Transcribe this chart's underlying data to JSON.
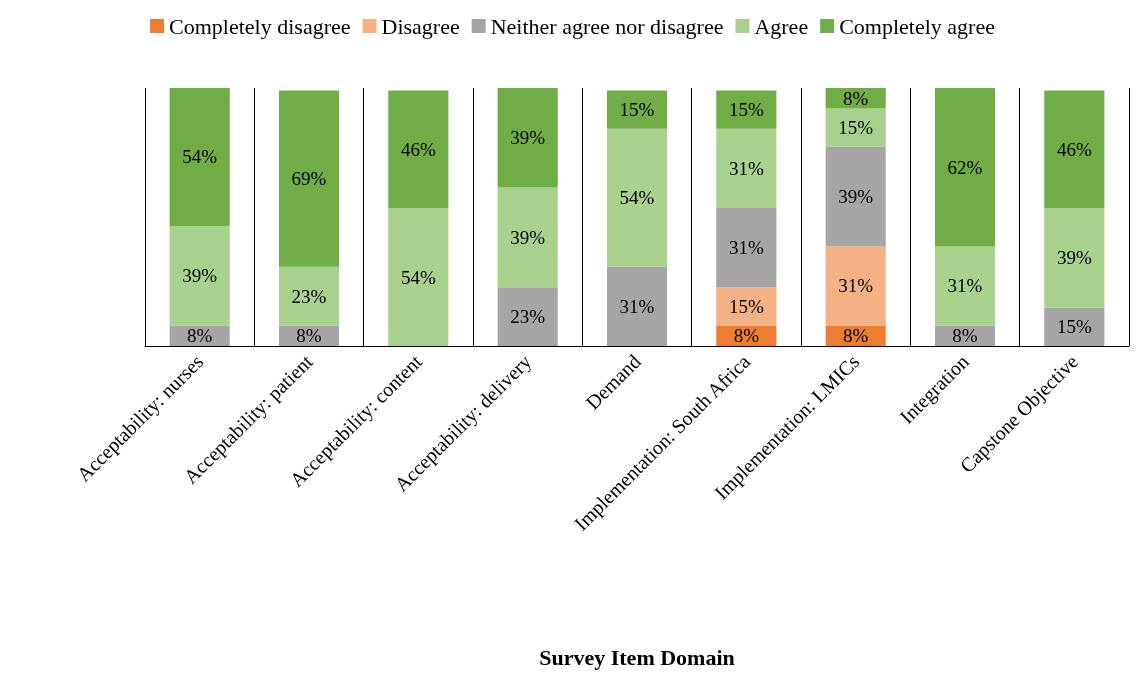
{
  "chart_data": {
    "type": "bar",
    "stacked": true,
    "tick_labels": "x",
    "grid": "x",
    "legend": "top",
    "xlabel": "Survey Item Domain",
    "categories": [
      "Acceptability: nurses",
      "Acceptability: patient",
      "Acceptability: content",
      "Acceptability: delivery",
      "Demand",
      "Implementation: South Africa",
      "Implementation: LMICs",
      "Integration",
      "Capstone Objective"
    ],
    "series": [
      {
        "name": "Completely disagree",
        "color": "#ed7d31",
        "values": [
          null,
          null,
          null,
          null,
          null,
          8,
          8,
          null,
          null
        ],
        "value_labels": [
          null,
          null,
          null,
          null,
          null,
          "8%",
          "8%",
          null,
          null
        ]
      },
      {
        "name": "Disagree",
        "color": "#f4b183",
        "values": [
          null,
          null,
          null,
          null,
          null,
          15,
          31,
          null,
          null
        ],
        "value_labels": [
          null,
          null,
          null,
          null,
          null,
          "15%",
          "31%",
          null,
          null
        ]
      },
      {
        "name": "Neither agree nor disagree",
        "color": "#a5a5a5",
        "values": [
          8,
          8,
          null,
          23,
          31,
          31,
          39,
          8,
          15
        ],
        "value_labels": [
          "8%",
          "8%",
          null,
          "23%",
          "31%",
          "31%",
          "39%",
          "8%",
          "15%"
        ]
      },
      {
        "name": "Agree",
        "color": "#a9d18e",
        "values": [
          39,
          23,
          54,
          39,
          54,
          31,
          15,
          31,
          39
        ],
        "value_labels": [
          "39%",
          "23%",
          "54%",
          "39%",
          "54%",
          "31%",
          "15%",
          "31%",
          "39%"
        ]
      },
      {
        "name": "Completely agree",
        "color": "#70ad47",
        "values": [
          54,
          69,
          46,
          39,
          15,
          15,
          8,
          62,
          46
        ],
        "value_labels": [
          "54%",
          "69%",
          "46%",
          "39%",
          "15%",
          "15%",
          "8%",
          "62%",
          "46%"
        ]
      }
    ]
  }
}
